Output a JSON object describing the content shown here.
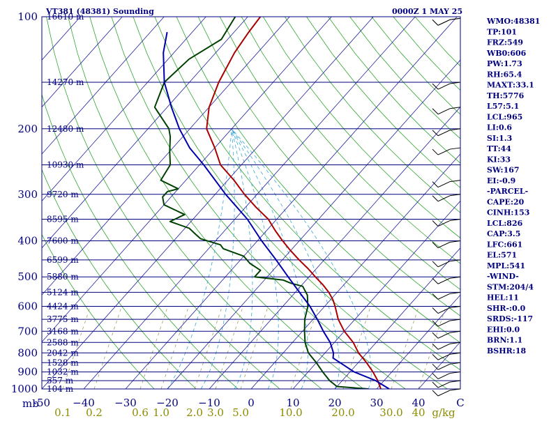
{
  "header": {
    "station": "VT381 (48381) Sounding",
    "time": "0000Z  1 MAY 25"
  },
  "indices": [
    "WMO:48381",
    "TP:101",
    "FRZ:549",
    "WB0:606",
    "PW:1.73",
    "RH:65.4",
    "MAXT:33.1",
    "TH:5776",
    "L57:5.1",
    "LCL:965",
    "LI:0.6",
    "SI:1.3",
    "TT:44",
    "KI:33",
    "SW:167",
    "EI:-0.9",
    "-PARCEL-",
    "CAPE:20",
    "CINH:153",
    "LCL:826",
    "CAP:3.5",
    "LFC:661",
    "EL:571",
    "MPL:541",
    "-WIND-",
    "STM:204/4",
    "HEL:11",
    "SHR-:0.0",
    "SRDS:-117",
    "EHI:0.0",
    "BRN:1.1",
    "BSHR:18"
  ],
  "chart_data": {
    "type": "line",
    "title": "VT381 (48381) Sounding",
    "subtitle": "0000Z  1 MAY 25",
    "xlabel": "",
    "ylabel": "mb",
    "xlim": [
      -50,
      50
    ],
    "ylim": [
      1000,
      100
    ],
    "y_scale": "log",
    "pressure_ticks": [
      {
        "p": 100,
        "label": "100"
      },
      {
        "p": 200,
        "label": "200"
      },
      {
        "p": 300,
        "label": "300"
      },
      {
        "p": 400,
        "label": "400"
      },
      {
        "p": 500,
        "label": "500"
      },
      {
        "p": 600,
        "label": "600"
      },
      {
        "p": 700,
        "label": "700"
      },
      {
        "p": 800,
        "label": "800"
      },
      {
        "p": 900,
        "label": "900"
      },
      {
        "p": 1000,
        "label": "1000"
      }
    ],
    "height_labels": [
      {
        "p": 100,
        "label": "16610 m"
      },
      {
        "p": 150,
        "label": "14270 m"
      },
      {
        "p": 200,
        "label": "12480 m"
      },
      {
        "p": 250,
        "label": "10930 m"
      },
      {
        "p": 300,
        "label": "9720 m"
      },
      {
        "p": 350,
        "label": "8595 m"
      },
      {
        "p": 400,
        "label": "7600 m"
      },
      {
        "p": 450,
        "label": "6599 m"
      },
      {
        "p": 500,
        "label": "5880 m"
      },
      {
        "p": 550,
        "label": "5124 m"
      },
      {
        "p": 600,
        "label": "4424 m"
      },
      {
        "p": 650,
        "label": "3775 m"
      },
      {
        "p": 700,
        "label": "3168 m"
      },
      {
        "p": 750,
        "label": "2588 m"
      },
      {
        "p": 800,
        "label": "2042 m"
      },
      {
        "p": 850,
        "label": "1528 m"
      },
      {
        "p": 900,
        "label": "1032 m"
      },
      {
        "p": 950,
        "label": "557 m"
      },
      {
        "p": 1000,
        "label": "104 m"
      }
    ],
    "temperature_ticks": [
      {
        "t": -50,
        "label": "-50"
      },
      {
        "t": -40,
        "label": "−40"
      },
      {
        "t": -30,
        "label": "−30"
      },
      {
        "t": -20,
        "label": "−20"
      },
      {
        "t": -10,
        "label": "−10"
      },
      {
        "t": 0,
        "label": "0"
      },
      {
        "t": 10,
        "label": "10"
      },
      {
        "t": 20,
        "label": "20"
      },
      {
        "t": 30,
        "label": "30"
      },
      {
        "t": 40,
        "label": "40"
      },
      {
        "t": 50,
        "label": "C"
      }
    ],
    "mixing_ratio_ticks": [
      {
        "t": -45,
        "label": "0.1"
      },
      {
        "t": -37.5,
        "label": "0.2"
      },
      {
        "t": -26.5,
        "label": "0.6"
      },
      {
        "t": -21.5,
        "label": "1.0"
      },
      {
        "t": -13.5,
        "label": "2.0"
      },
      {
        "t": -8.5,
        "label": "3.0"
      },
      {
        "t": -2.5,
        "label": "5.0"
      },
      {
        "t": 9.5,
        "label": "10.0"
      },
      {
        "t": 22,
        "label": "20.0"
      },
      {
        "t": 33.5,
        "label": "30.0"
      },
      {
        "t": 40,
        "label": "40"
      },
      {
        "t": 46,
        "label": "g/kg"
      }
    ],
    "isotherms": [
      -140,
      -130,
      -120,
      -110,
      -100,
      -90,
      -80,
      -70,
      -60,
      -50,
      -40,
      -30,
      -20,
      -10,
      0,
      10,
      20,
      30,
      40,
      50
    ],
    "series": [
      {
        "role": "temperature",
        "color": "#aa0000",
        "points": [
          [
            100,
            -77
          ],
          [
            110,
            -76.5
          ],
          [
            125,
            -75.5
          ],
          [
            150,
            -73
          ],
          [
            175,
            -70
          ],
          [
            200,
            -66
          ],
          [
            225,
            -60
          ],
          [
            250,
            -55
          ],
          [
            275,
            -48.5
          ],
          [
            300,
            -43
          ],
          [
            325,
            -37.5
          ],
          [
            350,
            -32
          ],
          [
            375,
            -28
          ],
          [
            400,
            -24
          ],
          [
            425,
            -20
          ],
          [
            450,
            -16
          ],
          [
            475,
            -12
          ],
          [
            500,
            -8.5
          ],
          [
            525,
            -5
          ],
          [
            550,
            -2
          ],
          [
            575,
            0.5
          ],
          [
            600,
            2.5
          ],
          [
            650,
            6
          ],
          [
            700,
            10
          ],
          [
            750,
            14.5
          ],
          [
            800,
            18
          ],
          [
            850,
            22
          ],
          [
            900,
            25.5
          ],
          [
            950,
            28.5
          ],
          [
            1000,
            31
          ]
        ]
      },
      {
        "role": "dewpoint",
        "color": "#004000",
        "points": [
          [
            100,
            -83
          ],
          [
            115,
            -81.5
          ],
          [
            130,
            -85
          ],
          [
            150,
            -86
          ],
          [
            175,
            -83
          ],
          [
            200,
            -75
          ],
          [
            210,
            -73
          ],
          [
            230,
            -70
          ],
          [
            250,
            -67
          ],
          [
            275,
            -66
          ],
          [
            290,
            -60
          ],
          [
            295,
            -62
          ],
          [
            305,
            -62
          ],
          [
            320,
            -60
          ],
          [
            340,
            -53
          ],
          [
            355,
            -55
          ],
          [
            370,
            -49
          ],
          [
            385,
            -46
          ],
          [
            395,
            -44
          ],
          [
            410,
            -38
          ],
          [
            420,
            -36.5
          ],
          [
            440,
            -30
          ],
          [
            460,
            -27
          ],
          [
            480,
            -23
          ],
          [
            500,
            -23
          ],
          [
            510,
            -15.5
          ],
          [
            520,
            -13
          ],
          [
            530,
            -9.5
          ],
          [
            560,
            -6.5
          ],
          [
            600,
            -4
          ],
          [
            650,
            -2
          ],
          [
            700,
            0.5
          ],
          [
            750,
            3
          ],
          [
            800,
            6
          ],
          [
            850,
            10
          ],
          [
            900,
            13.5
          ],
          [
            950,
            17
          ],
          [
            985,
            20
          ],
          [
            1000,
            28
          ]
        ]
      },
      {
        "role": "parcel",
        "color": "#0000aa",
        "points": [
          [
            110,
            -96
          ],
          [
            125,
            -92.5
          ],
          [
            150,
            -86
          ],
          [
            175,
            -79
          ],
          [
            200,
            -72.5
          ],
          [
            225,
            -66
          ],
          [
            250,
            -59
          ],
          [
            300,
            -47.5
          ],
          [
            350,
            -37
          ],
          [
            400,
            -29
          ],
          [
            450,
            -21.5
          ],
          [
            500,
            -15
          ],
          [
            550,
            -9
          ],
          [
            600,
            -3.5
          ],
          [
            650,
            1
          ],
          [
            700,
            5
          ],
          [
            750,
            9
          ],
          [
            800,
            12
          ],
          [
            826,
            13
          ],
          [
            900,
            21
          ],
          [
            950,
            28
          ],
          [
            1000,
            33
          ]
        ]
      }
    ]
  }
}
